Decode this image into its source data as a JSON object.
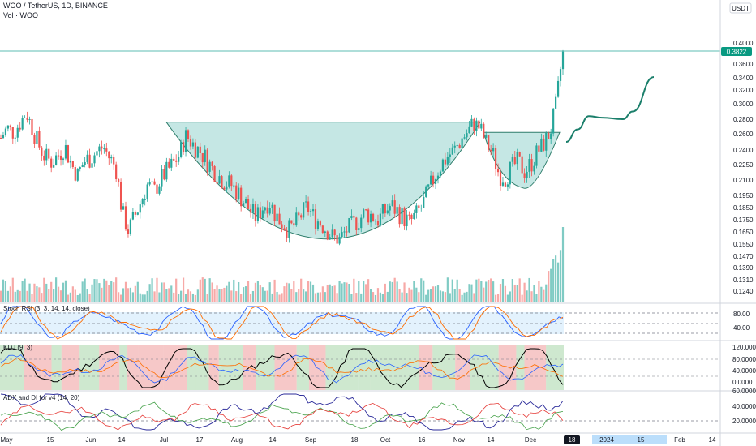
{
  "header": {
    "symbol_line": "WOO / TetherUS, 1D, BINANCE",
    "volume_label": "Vol · WOO",
    "currency": "USDT"
  },
  "colors": {
    "up": "#26a69a",
    "down": "#ef5350",
    "cup_fill": "#b2dfdb",
    "forecast": "#1b7f6b",
    "last_price_bg": "#089981",
    "stoch_band": "#e3f2fd",
    "kdj_green": "#a5d6a7",
    "kdj_red": "#ef9a9a"
  },
  "chart_data": [
    {
      "type": "candlestick",
      "name": "price",
      "y_ticks": [
        "0.4000",
        "0.3600",
        "0.3400",
        "0.3200",
        "0.3000",
        "0.2800",
        "0.2600",
        "0.2400",
        "0.2250",
        "0.2100",
        "0.1950",
        "0.1850",
        "0.1750",
        "0.1650",
        "0.1550",
        "0.1470",
        "0.1390",
        "0.1310",
        "0.1240"
      ],
      "last_price": "0.3822",
      "x_ticks": [
        "May",
        "15",
        "Jun",
        "14",
        "Jul",
        "17",
        "Aug",
        "14",
        "Sep",
        "18",
        "Oct",
        "16",
        "Nov",
        "14",
        "Dec",
        "18",
        "2024",
        "15",
        "Feb",
        "14"
      ],
      "highlighted_x_tick": "18",
      "ohlc_close_path": [
        0.255,
        0.268,
        0.262,
        0.275,
        0.29,
        0.265,
        0.245,
        0.232,
        0.228,
        0.235,
        0.245,
        0.226,
        0.214,
        0.228,
        0.232,
        0.238,
        0.244,
        0.232,
        0.222,
        0.18,
        0.165,
        0.178,
        0.19,
        0.205,
        0.198,
        0.21,
        0.218,
        0.226,
        0.236,
        0.258,
        0.248,
        0.24,
        0.232,
        0.222,
        0.214,
        0.208,
        0.205,
        0.198,
        0.19,
        0.182,
        0.176,
        0.185,
        0.19,
        0.178,
        0.172,
        0.166,
        0.17,
        0.178,
        0.185,
        0.176,
        0.172,
        0.166,
        0.16,
        0.158,
        0.165,
        0.17,
        0.174,
        0.18,
        0.178,
        0.174,
        0.18,
        0.186,
        0.182,
        0.176,
        0.172,
        0.178,
        0.186,
        0.2,
        0.214,
        0.226,
        0.234,
        0.24,
        0.252,
        0.262,
        0.275,
        0.268,
        0.248,
        0.236,
        0.215,
        0.212,
        0.222,
        0.228,
        0.218,
        0.226,
        0.238,
        0.248,
        0.262,
        0.3,
        0.382
      ],
      "cup_rim": 0.276,
      "cup_bottom": 0.156,
      "handle_top": 0.262,
      "handle_bottom": 0.211,
      "forecast_path": [
        0.25,
        0.266,
        0.284,
        0.282,
        0.28,
        0.29,
        0.34
      ]
    },
    {
      "type": "line",
      "name": "Stoch RSI (3, 3, 14, 14, close)",
      "y_ticks": [
        "80.00",
        "40.00"
      ],
      "levels": [
        80,
        50,
        20
      ]
    },
    {
      "type": "line",
      "name": "KDJ (9, 3)",
      "y_ticks": [
        "120.0000",
        "80.0000",
        "40.0000",
        "0.0000"
      ]
    },
    {
      "type": "line",
      "name": "ADX and DI for v4 (14, 20)",
      "y_ticks": [
        "60.0000",
        "40.0000",
        "20.0000"
      ],
      "threshold": 20
    }
  ]
}
